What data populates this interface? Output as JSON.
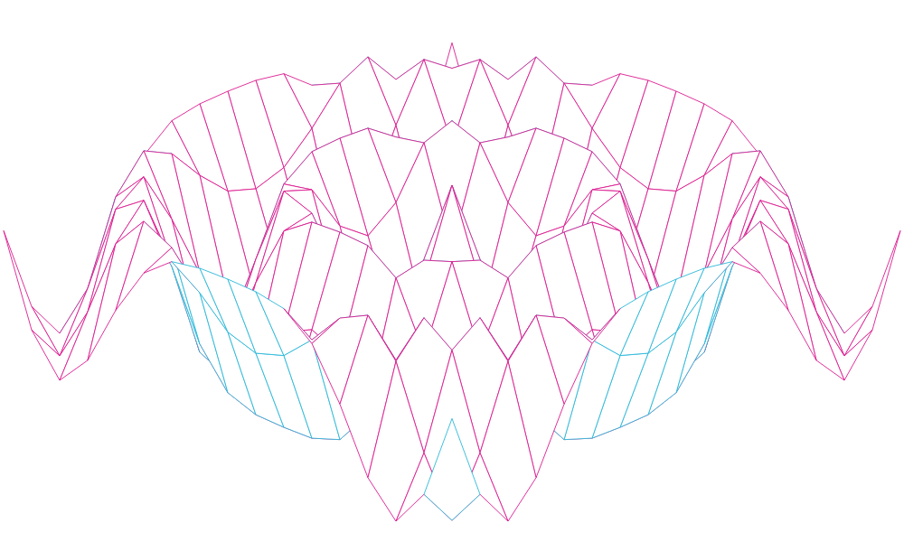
{
  "chart_data": {
    "type": "surface",
    "x": [
      -8,
      -7,
      -6,
      -5,
      -4,
      -3,
      -2,
      -1,
      0,
      1,
      2,
      3,
      4,
      5,
      6,
      7,
      8
    ],
    "y": [
      -8,
      -7,
      -6,
      -5,
      -4,
      -3,
      -2,
      -1,
      0,
      1,
      2,
      3,
      4,
      5,
      6,
      7,
      8
    ],
    "z": [
      [
        0.47,
        -0.55,
        -1,
        -0.63,
        0.09,
        0.66,
        0.93,
        0.99,
        1,
        0.99,
        0.93,
        0.66,
        0.09,
        -0.63,
        -1,
        -0.55,
        0.47
      ],
      [
        -0.55,
        -0.99,
        -0.34,
        0.59,
        0.99,
        0.82,
        0.43,
        0.11,
        0,
        0.11,
        0.43,
        0.82,
        0.99,
        0.59,
        -0.34,
        -0.99,
        -0.55
      ],
      [
        -1,
        -0.34,
        0.72,
        0.96,
        0.33,
        -0.44,
        -0.87,
        -0.99,
        -1,
        -0.99,
        -0.87,
        -0.44,
        0.33,
        0.96,
        0.72,
        -0.34,
        -1
      ],
      [
        -0.63,
        0.59,
        0.96,
        0.11,
        -0.81,
        -0.97,
        -0.57,
        -0.16,
        0,
        -0.16,
        -0.57,
        -0.97,
        -0.81,
        0.11,
        0.96,
        0.59,
        -0.63
      ],
      [
        0.09,
        0.99,
        0.33,
        -0.81,
        -0.86,
        0,
        0.74,
        0.98,
        1,
        0.98,
        0.74,
        0,
        -0.86,
        -0.81,
        0.33,
        0.99,
        0.09
      ],
      [
        0.66,
        0.82,
        -0.44,
        -0.97,
        0,
        0.93,
        0.81,
        0.25,
        0,
        0.25,
        0.81,
        0.93,
        0,
        -0.97,
        -0.44,
        0.82,
        0.66
      ],
      [
        0.93,
        0.43,
        -0.87,
        -0.57,
        0.74,
        0.81,
        -0.27,
        -0.93,
        -1,
        -0.93,
        -0.27,
        0.81,
        0.74,
        -0.57,
        -0.87,
        0.43,
        0.93
      ],
      [
        0.99,
        0.11,
        -0.99,
        -0.16,
        0.98,
        0.25,
        -0.93,
        -0.61,
        0,
        -0.61,
        -0.93,
        0.25,
        0.98,
        -0.16,
        -0.99,
        0.11,
        0.99
      ],
      [
        1,
        0,
        -1,
        0,
        1,
        0,
        -1,
        0,
        1,
        0,
        -1,
        0,
        1,
        0,
        -1,
        0,
        1
      ],
      [
        0.99,
        0.11,
        -0.99,
        -0.16,
        0.98,
        0.25,
        -0.93,
        -0.61,
        0,
        -0.61,
        -0.93,
        0.25,
        0.98,
        -0.16,
        -0.99,
        0.11,
        0.99
      ],
      [
        0.93,
        0.43,
        -0.87,
        -0.57,
        0.74,
        0.81,
        -0.27,
        -0.93,
        -1,
        -0.93,
        -0.27,
        0.81,
        0.74,
        -0.57,
        -0.87,
        0.43,
        0.93
      ],
      [
        0.66,
        0.82,
        -0.44,
        -0.97,
        0,
        0.93,
        0.81,
        0.25,
        0,
        0.25,
        0.81,
        0.93,
        0,
        -0.97,
        -0.44,
        0.82,
        0.66
      ],
      [
        0.09,
        0.99,
        0.33,
        -0.81,
        -0.86,
        0,
        0.74,
        0.98,
        1,
        0.98,
        0.74,
        0,
        -0.86,
        -0.81,
        0.33,
        0.99,
        0.09
      ],
      [
        -0.63,
        0.59,
        0.96,
        0.11,
        -0.81,
        -0.97,
        -0.57,
        -0.16,
        0,
        -0.16,
        -0.57,
        -0.97,
        -0.81,
        0.11,
        0.96,
        0.59,
        -0.63
      ],
      [
        -1,
        -0.34,
        0.72,
        0.96,
        0.33,
        -0.44,
        -0.87,
        -0.99,
        -1,
        -0.99,
        -0.87,
        -0.44,
        0.33,
        0.96,
        0.72,
        -0.34,
        -1
      ],
      [
        -0.55,
        -0.99,
        -0.34,
        0.59,
        0.99,
        0.82,
        0.43,
        0.11,
        0,
        0.11,
        0.43,
        0.82,
        0.99,
        0.59,
        -0.34,
        -0.99,
        -0.55
      ],
      [
        0.47,
        -0.55,
        -1,
        -0.63,
        0.09,
        0.66,
        0.93,
        0.99,
        1,
        0.99,
        0.93,
        0.66,
        0.09,
        -0.63,
        -1,
        -0.55,
        0.47
      ]
    ],
    "color": "#db1a8f",
    "tick_labels": false,
    "grid": false
  }
}
